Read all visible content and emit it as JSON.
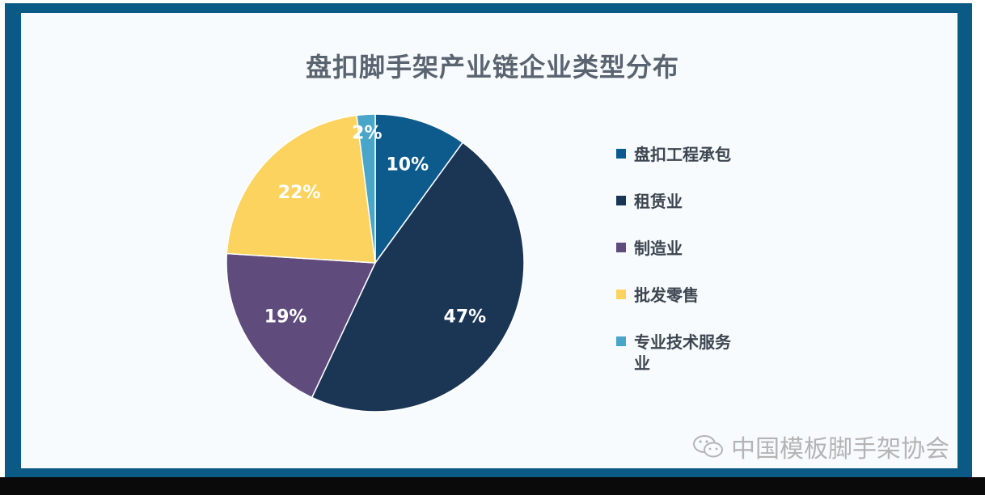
{
  "chart_data": {
    "type": "pie",
    "title": "盘扣脚手架产业链企业类型分布",
    "categories": [
      "盘扣工程承包",
      "租赁业",
      "制造业",
      "批发零售",
      "专业技术服务业"
    ],
    "values": [
      10,
      47,
      19,
      22,
      2
    ],
    "value_labels": [
      "10%",
      "47%",
      "19%",
      "22%",
      "2%"
    ],
    "colors": [
      "#0d5b8d",
      "#1b3555",
      "#5f4c7d",
      "#fbd35e",
      "#4aa6c8"
    ],
    "legend": {
      "position": "right",
      "entries": [
        {
          "text": "盘扣工程承包"
        },
        {
          "text": "租赁业"
        },
        {
          "text": "制造业"
        },
        {
          "text": "批发零售"
        },
        {
          "text": "专业技术服务\n业"
        }
      ]
    }
  },
  "watermark": {
    "icon": "wechat-icon",
    "text": "中国模板脚手架协会"
  },
  "colors": {
    "frame": "#0b5a86",
    "background": "#f7fbfd",
    "title": "#5a6470"
  }
}
